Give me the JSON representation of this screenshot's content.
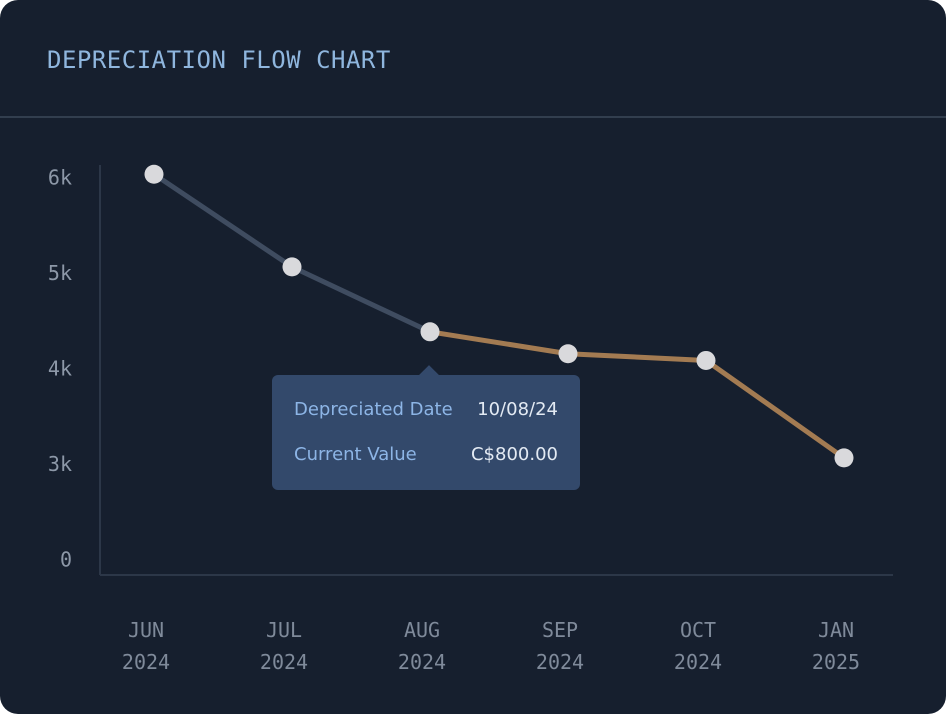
{
  "chart_data": {
    "type": "line",
    "title": "DEPRECIATION FLOW CHART",
    "categories": [
      "JUN 2024",
      "JUL 2024",
      "AUG 2024",
      "SEP 2024",
      "OCT 2024",
      "JAN 2025"
    ],
    "values": [
      6050,
      5080,
      4400,
      4170,
      4100,
      3080
    ],
    "color": "#3f4c60",
    "highlight_color": "#a37b52",
    "highlight_from": "AUG 2024",
    "marker_color": "#d9d9dc",
    "ylim": [
      0,
      6000
    ],
    "yticks": [
      0,
      {
        "value": 3000,
        "label": "3k"
      },
      {
        "value": 4000,
        "label": "4k"
      },
      {
        "value": 5000,
        "label": "5k"
      },
      {
        "value": 6000,
        "label": "6k"
      }
    ],
    "grid": false,
    "tooltip": {
      "date_label": "Depreciated Date",
      "date": "10/08/24",
      "value_label": "Current Value",
      "value": "C$800.00"
    }
  }
}
